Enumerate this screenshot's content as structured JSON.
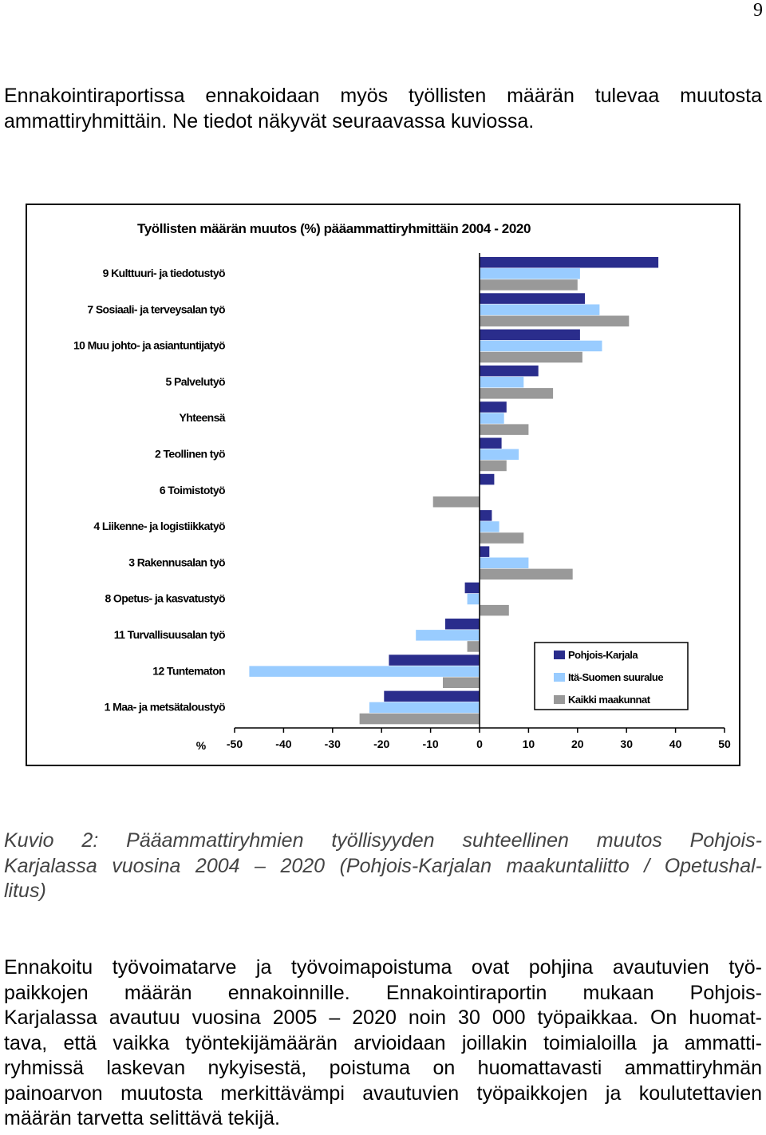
{
  "page": {
    "number": "9"
  },
  "intro": {
    "lines": [
      "Ennakointiraportissa ennakoidaan myös työllisten määrän tulevaa muutosta",
      "ammattiryhmittäin. Ne tiedot näkyvät seuraavassa kuviossa."
    ]
  },
  "chart_data": {
    "type": "bar",
    "orientation": "horizontal",
    "title": "Työllisten määrän muutos (%) pääammattiryhmittäin 2004 - 2020",
    "xlabel": "%",
    "xlim": [
      -50,
      50
    ],
    "xticks": [
      "-50",
      "-40",
      "-30",
      "-20",
      "-10",
      "0",
      "10",
      "20",
      "30",
      "40",
      "50"
    ],
    "legend_position": "bottom-right",
    "categories": [
      "9 Kulttuuri- ja tiedotustyö",
      "7 Sosiaali- ja terveysalan työ",
      "10 Muu johto- ja asiantuntijatyö",
      "5 Palvelutyö",
      "Yhteensä",
      "2 Teollinen työ",
      "6 Toimistotyö",
      "4 Liikenne- ja logistiikkatyö",
      "3 Rakennusalan työ",
      "8 Opetus- ja kasvatustyö",
      "11 Turvallisuusalan työ",
      "12 Tuntematon",
      "1 Maa- ja metsätaloustyö"
    ],
    "series": [
      {
        "name": "Pohjois-Karjala",
        "color": "#2a2d8c",
        "values": [
          36.5,
          21.5,
          20.5,
          12,
          5.5,
          4.5,
          3,
          2.5,
          2,
          -3,
          -7,
          -18.5,
          -19.5
        ]
      },
      {
        "name": "Itä-Suomen suuralue",
        "color": "#99ccff",
        "values": [
          20.5,
          24.5,
          25,
          9,
          5,
          8,
          0,
          4,
          10,
          -2.5,
          -13,
          -47,
          -22.5
        ]
      },
      {
        "name": "Kaikki maakunnat",
        "color": "#999999",
        "values": [
          20,
          30.5,
          21,
          15,
          10,
          5.5,
          -9.5,
          9,
          19,
          6,
          -2.5,
          -7.5,
          -24.5
        ]
      }
    ]
  },
  "caption": {
    "lines": [
      "Kuvio 2: Pääammattiryhmien työllisyyden suhteellinen muutos Pohjois-",
      "Karjalassa vuosina 2004 – 2020 (Pohjois-Karjalan maakuntaliitto / Opetushal-",
      "litus)"
    ]
  },
  "body": {
    "lines": [
      "Ennakoitu työvoimatarve ja työvoimapoistuma ovat pohjina avautuvien työ-",
      "paikkojen määrän ennakoinnille. Ennakointiraportin mukaan Pohjois-",
      "Karjalassa avautuu vuosina 2005 – 2020 noin 30 000 työpaikkaa. On huomat-",
      "tava, että vaikka työntekijämäärän arvioidaan joillakin toimialoilla ja ammatti-",
      "ryhmissä laskevan nykyisestä, poistuma on huomattavasti ammattiryhmän",
      "painoarvon muutosta merkittävämpi avautuvien työpaikkojen ja koulutettavien",
      "määrän tarvetta selittävä tekijä."
    ]
  }
}
